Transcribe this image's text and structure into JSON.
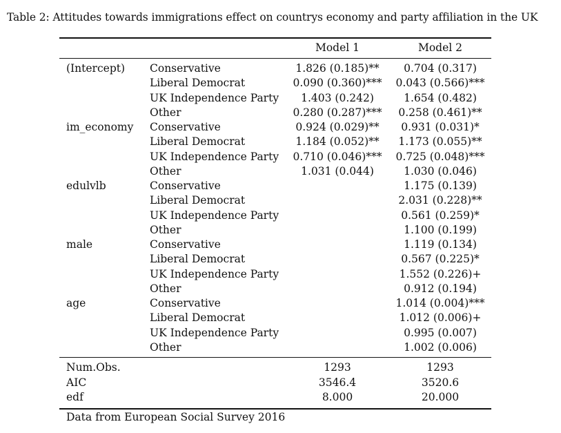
{
  "caption": "Table 2: Attitudes towards immigrations effect on countrys economy and party affiliation in the UK",
  "header": {
    "model1": "Model 1",
    "model2": "Model 2"
  },
  "rows": [
    {
      "var": "(Intercept)",
      "party": "Conservative",
      "m1": "1.826 (0.185)**",
      "m2": "0.704 (0.317)"
    },
    {
      "var": "",
      "party": "Liberal Democrat",
      "m1": "0.090 (0.360)***",
      "m2": "0.043 (0.566)***"
    },
    {
      "var": "",
      "party": "UK Independence Party",
      "m1": "1.403 (0.242)",
      "m2": "1.654 (0.482)"
    },
    {
      "var": "",
      "party": "Other",
      "m1": "0.280 (0.287)***",
      "m2": "0.258 (0.461)**"
    },
    {
      "var": "im_economy",
      "party": "Conservative",
      "m1": "0.924 (0.029)**",
      "m2": "0.931 (0.031)*"
    },
    {
      "var": "",
      "party": "Liberal Democrat",
      "m1": "1.184 (0.052)**",
      "m2": "1.173 (0.055)**"
    },
    {
      "var": "",
      "party": "UK Independence Party",
      "m1": "0.710 (0.046)***",
      "m2": "0.725 (0.048)***"
    },
    {
      "var": "",
      "party": "Other",
      "m1": "1.031 (0.044)",
      "m2": "1.030 (0.046)"
    },
    {
      "var": "edulvlb",
      "party": "Conservative",
      "m1": "",
      "m2": "1.175 (0.139)"
    },
    {
      "var": "",
      "party": "Liberal Democrat",
      "m1": "",
      "m2": "2.031 (0.228)**"
    },
    {
      "var": "",
      "party": "UK Independence Party",
      "m1": "",
      "m2": "0.561 (0.259)*"
    },
    {
      "var": "",
      "party": "Other",
      "m1": "",
      "m2": "1.100 (0.199)"
    },
    {
      "var": "male",
      "party": "Conservative",
      "m1": "",
      "m2": "1.119 (0.134)"
    },
    {
      "var": "",
      "party": "Liberal Democrat",
      "m1": "",
      "m2": "0.567 (0.225)*"
    },
    {
      "var": "",
      "party": "UK Independence Party",
      "m1": "",
      "m2": "1.552 (0.226)+"
    },
    {
      "var": "",
      "party": "Other",
      "m1": "",
      "m2": "0.912 (0.194)"
    },
    {
      "var": "age",
      "party": "Conservative",
      "m1": "",
      "m2": "1.014 (0.004)***"
    },
    {
      "var": "",
      "party": "Liberal Democrat",
      "m1": "",
      "m2": "1.012 (0.006)+"
    },
    {
      "var": "",
      "party": "UK Independence Party",
      "m1": "",
      "m2": "0.995 (0.007)"
    },
    {
      "var": "",
      "party": "Other",
      "m1": "",
      "m2": "1.002 (0.006)"
    }
  ],
  "stats": [
    {
      "label": "Num.Obs.",
      "m1": "1293",
      "m2": "1293"
    },
    {
      "label": "AIC",
      "m1": "3546.4",
      "m2": "3520.6"
    },
    {
      "label": "edf",
      "m1": "8.000",
      "m2": "20.000"
    }
  ],
  "note": "Data from European Social Survey 2016"
}
